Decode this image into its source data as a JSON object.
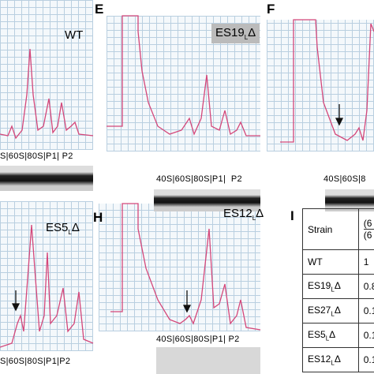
{
  "panels": [
    {
      "letter": null,
      "label": {
        "base": "WT",
        "sub": null,
        "suffix": null
      },
      "fractions": "S|60S|80S|P1| P2"
    },
    {
      "letter": "E",
      "label": {
        "base": "ES19",
        "sub": "L",
        "suffix": "Δ"
      },
      "fractions": "40S|60S|80S|P1|  P2"
    },
    {
      "letter": "F",
      "label": null,
      "fractions": "40S|60S|8"
    },
    {
      "letter": null,
      "label": {
        "base": "ES5",
        "sub": "L",
        "suffix": "Δ"
      },
      "fractions": "S|60S|80S|P1|P2"
    },
    {
      "letter": "H",
      "label": {
        "base": "ES12",
        "sub": "L",
        "suffix": "Δ"
      },
      "fractions": "40S|60S|80S|P1| P2"
    }
  ],
  "table": {
    "letter": "I",
    "header": [
      "Strain",
      "(6",
      "(6"
    ],
    "rows": [
      [
        {
          "base": "WT",
          "sub": null,
          "suffix": null
        },
        "1"
      ],
      [
        {
          "base": "ES19",
          "sub": "L",
          "suffix": "Δ"
        },
        "0.8"
      ],
      [
        {
          "base": "ES27",
          "sub": "L",
          "suffix": "Δ"
        },
        "0.1"
      ],
      [
        {
          "base": "ES5",
          "sub": "L",
          "suffix": "Δ"
        },
        "0.1"
      ],
      [
        {
          "base": "ES12",
          "sub": "L",
          "suffix": "Δ"
        },
        "0.1"
      ]
    ]
  }
}
